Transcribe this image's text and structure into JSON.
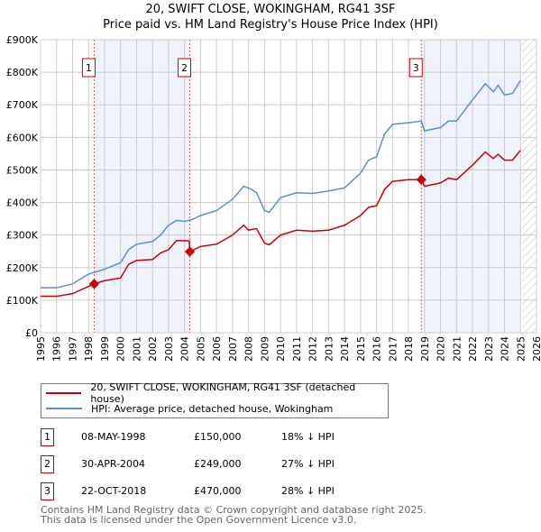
{
  "chart_data": {
    "type": "line",
    "title": "20, SWIFT CLOSE, WOKINGHAM, RG41 3SF",
    "subtitle": "Price paid vs. HM Land Registry's House Price Index (HPI)",
    "xlim": [
      1995,
      2026
    ],
    "ylim": [
      0,
      900000
    ],
    "yticks": [
      0,
      100000,
      200000,
      300000,
      400000,
      500000,
      600000,
      700000,
      800000,
      900000
    ],
    "ytick_labels": [
      "£0",
      "£100K",
      "£200K",
      "£300K",
      "£400K",
      "£500K",
      "£600K",
      "£700K",
      "£800K",
      "£900K"
    ],
    "xticks": [
      "1995",
      "1996",
      "1997",
      "1998",
      "1999",
      "2000",
      "2001",
      "2002",
      "2003",
      "2004",
      "2005",
      "2006",
      "2007",
      "2008",
      "2009",
      "2010",
      "2011",
      "2012",
      "2013",
      "2014",
      "2015",
      "2016",
      "2017",
      "2018",
      "2019",
      "2020",
      "2021",
      "2022",
      "2023",
      "2024",
      "2025",
      "2026"
    ],
    "grid": true,
    "series": [
      {
        "name": "20, SWIFT CLOSE, WOKINGHAM, RG41 3SF (detached house)",
        "color": "#cc0000",
        "x": [
          1995,
          1996,
          1997,
          1998.35,
          1999,
          2000,
          2000.5,
          2001,
          2002,
          2002.5,
          2003,
          2003.5,
          2004.3,
          2004.33,
          2005,
          2006,
          2007,
          2007.7,
          2008,
          2008.5,
          2009,
          2009.3,
          2010,
          2011,
          2012,
          2013,
          2014,
          2015,
          2015.5,
          2016,
          2016.5,
          2017,
          2018,
          2018.8,
          2019,
          2020,
          2020.5,
          2021,
          2022,
          2022.8,
          2023.3,
          2023.6,
          2024,
          2024.5,
          2025
        ],
        "y": [
          112,
          112,
          120,
          150,
          160,
          168,
          210,
          222,
          225,
          245,
          255,
          283,
          282,
          249,
          265,
          272,
          300,
          330,
          315,
          320,
          275,
          270,
          300,
          315,
          312,
          315,
          330,
          360,
          385,
          390,
          440,
          465,
          470,
          470,
          450,
          460,
          475,
          470,
          515,
          555,
          535,
          548,
          530,
          530,
          560
        ]
      },
      {
        "name": "HPI: Average price, detached house, Wokingham",
        "color": "#5b8fd4",
        "x": [
          1995,
          1996,
          1997,
          1998,
          1999,
          2000,
          2000.5,
          2001,
          2002,
          2002.5,
          2003,
          2003.5,
          2004,
          2004.5,
          2005,
          2006,
          2007,
          2007.7,
          2008.2,
          2008.5,
          2009,
          2009.3,
          2010,
          2011,
          2012,
          2013,
          2014,
          2015,
          2015.5,
          2016,
          2016.5,
          2017,
          2018,
          2018.8,
          2019,
          2020,
          2020.5,
          2021,
          2022,
          2022.8,
          2023.3,
          2023.6,
          2024,
          2024.5,
          2025
        ],
        "y": [
          138,
          138,
          150,
          180,
          195,
          215,
          255,
          272,
          280,
          300,
          330,
          345,
          342,
          348,
          360,
          375,
          410,
          450,
          440,
          430,
          375,
          370,
          415,
          430,
          428,
          435,
          445,
          490,
          530,
          540,
          610,
          640,
          645,
          650,
          620,
          630,
          650,
          650,
          715,
          765,
          740,
          760,
          730,
          735,
          775
        ]
      }
    ],
    "y_units": "thousands GBP",
    "sales": [
      {
        "n": "1",
        "x": 1998.35,
        "y": 150,
        "date": "08-MAY-1998",
        "price": "£150,000",
        "hpi": "18% ↓ HPI"
      },
      {
        "n": "2",
        "x": 2004.33,
        "y": 249,
        "date": "30-APR-2004",
        "price": "£249,000",
        "hpi": "27% ↓ HPI"
      },
      {
        "n": "3",
        "x": 2018.8,
        "y": 470,
        "date": "22-OCT-2018",
        "price": "£470,000",
        "hpi": "28% ↓ HPI"
      }
    ],
    "shaded": [
      [
        1998.35,
        2004.33
      ],
      [
        2018.8,
        2025.0
      ]
    ],
    "hatch_from": 2025.1
  },
  "footer": {
    "line1": "Contains HM Land Registry data © Crown copyright and database right 2025.",
    "line2": "This data is licensed under the Open Government Licence v3.0."
  }
}
